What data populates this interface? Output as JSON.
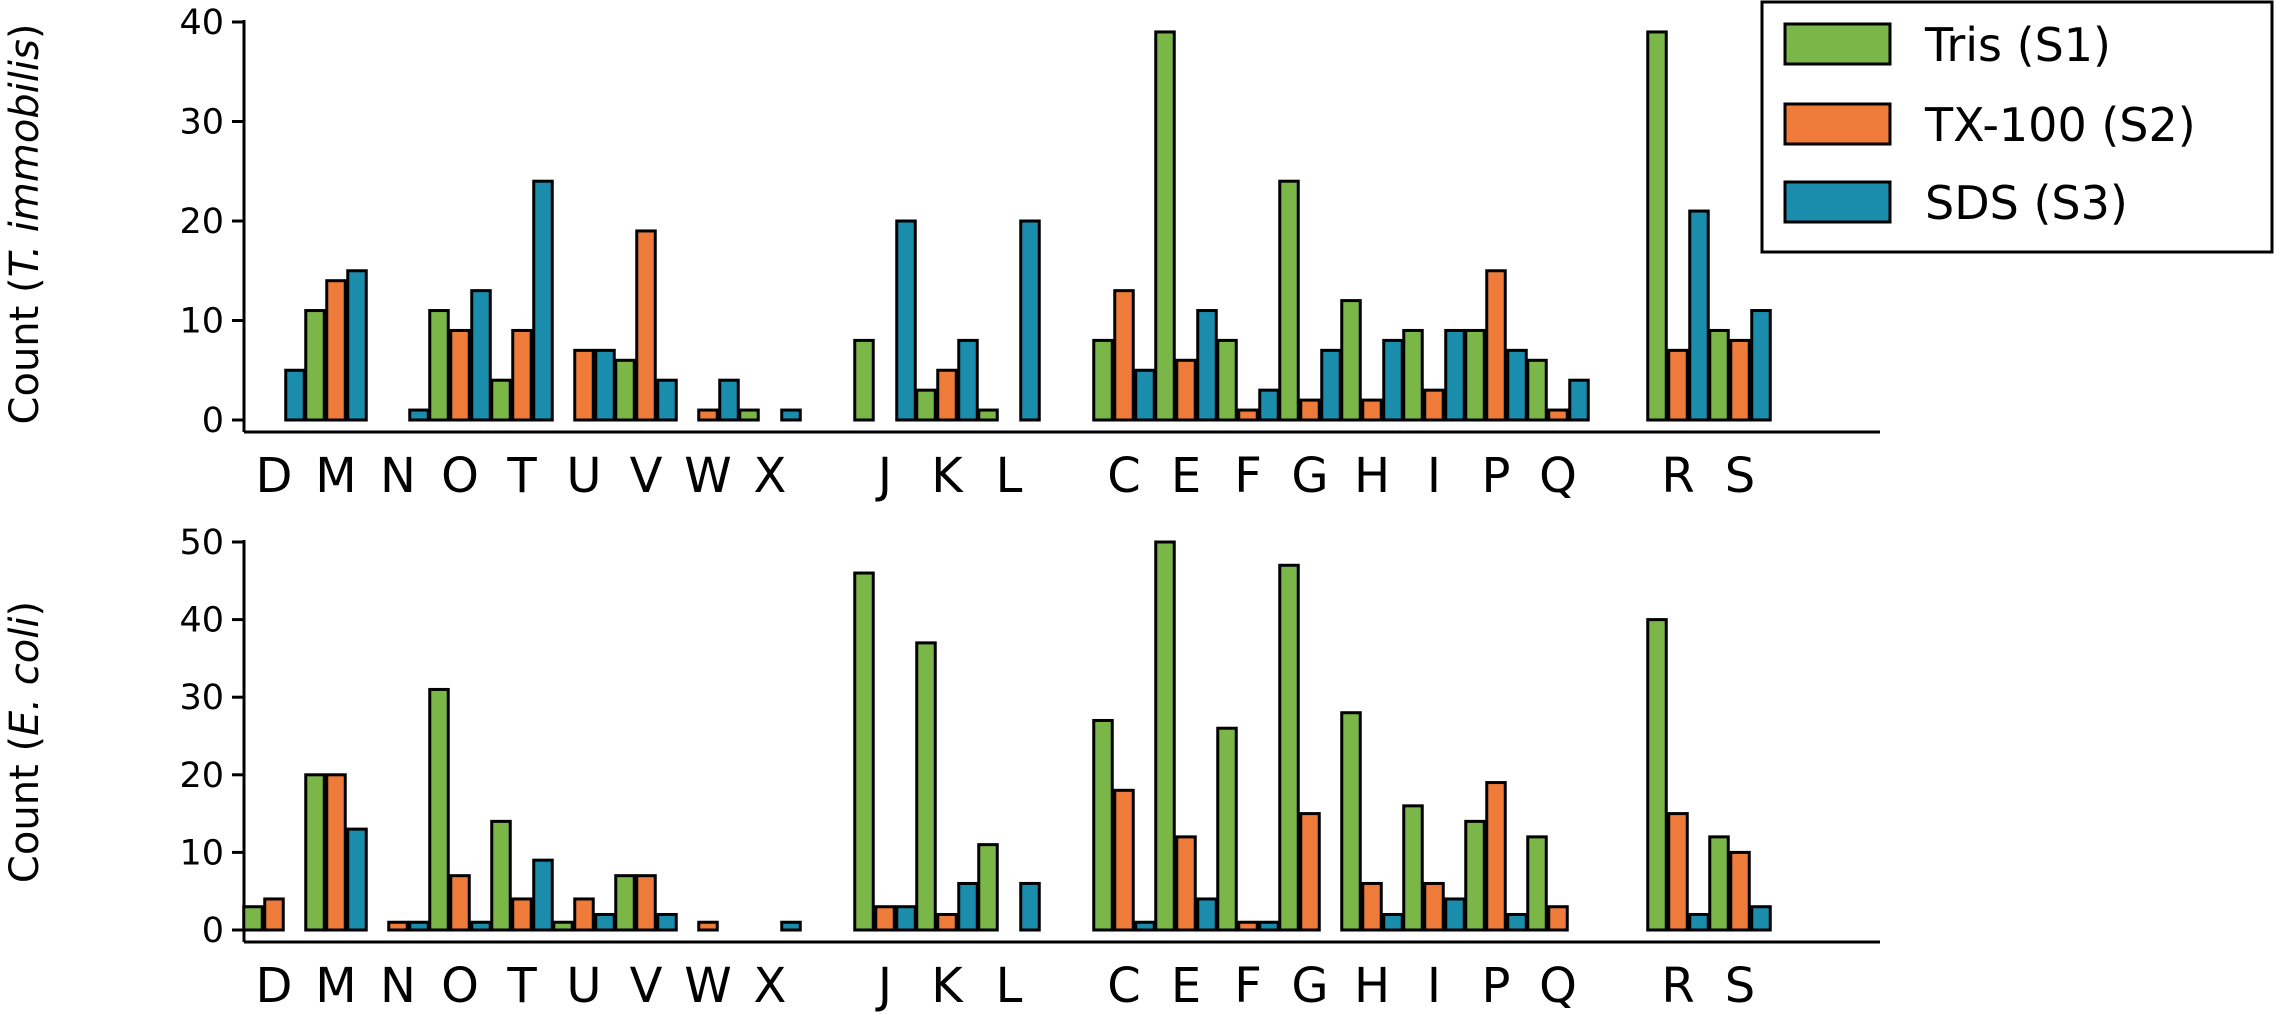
{
  "chart_data": [
    {
      "type": "bar",
      "ylabel_prefix": "Count (",
      "ylabel_italic": "T. immobilis",
      "ylabel_suffix": ")",
      "ylim": [
        0,
        40
      ],
      "yticks": [
        0,
        10,
        20,
        30,
        40
      ],
      "categories": [
        "D",
        "M",
        "N",
        "O",
        "T",
        "U",
        "V",
        "W",
        "X",
        "J",
        "K",
        "L",
        "C",
        "E",
        "F",
        "G",
        "H",
        "I",
        "P",
        "Q",
        "R",
        "S"
      ],
      "series": [
        {
          "name": "Tris (S1)",
          "values": [
            0,
            11,
            0,
            11,
            4,
            0,
            6,
            0,
            1,
            8,
            3,
            1,
            8,
            39,
            8,
            24,
            12,
            9,
            9,
            6,
            39,
            9
          ]
        },
        {
          "name": "TX-100 (S2)",
          "values": [
            0,
            14,
            0,
            9,
            9,
            7,
            19,
            1,
            0,
            0,
            5,
            0,
            13,
            6,
            1,
            2,
            2,
            3,
            15,
            1,
            7,
            8
          ]
        },
        {
          "name": "SDS (S3)",
          "values": [
            5,
            15,
            1,
            13,
            24,
            7,
            4,
            4,
            1,
            20,
            8,
            20,
            5,
            11,
            3,
            7,
            8,
            9,
            7,
            4,
            21,
            11
          ]
        }
      ],
      "grid": false
    },
    {
      "type": "bar",
      "ylabel_prefix": "Count (",
      "ylabel_italic": "E. coli",
      "ylabel_suffix": ")",
      "ylim": [
        0,
        50
      ],
      "yticks": [
        0,
        10,
        20,
        30,
        40,
        50
      ],
      "categories": [
        "D",
        "M",
        "N",
        "O",
        "T",
        "U",
        "V",
        "W",
        "X",
        "J",
        "K",
        "L",
        "C",
        "E",
        "F",
        "G",
        "H",
        "I",
        "P",
        "Q",
        "R",
        "S"
      ],
      "series": [
        {
          "name": "Tris (S1)",
          "values": [
            3,
            20,
            0,
            31,
            14,
            1,
            7,
            0,
            0,
            46,
            37,
            11,
            27,
            50,
            26,
            47,
            28,
            16,
            14,
            12,
            40,
            12
          ]
        },
        {
          "name": "TX-100 (S2)",
          "values": [
            4,
            20,
            1,
            7,
            4,
            4,
            7,
            1,
            0,
            3,
            2,
            0,
            18,
            12,
            1,
            15,
            6,
            6,
            19,
            3,
            15,
            10
          ]
        },
        {
          "name": "SDS (S3)",
          "values": [
            0,
            13,
            1,
            1,
            9,
            2,
            2,
            0,
            1,
            3,
            6,
            6,
            1,
            4,
            1,
            0,
            2,
            4,
            2,
            0,
            2,
            3
          ]
        }
      ],
      "grid": false
    }
  ],
  "legend": {
    "placement": "top-right",
    "items": [
      {
        "label": "Tris (S1)",
        "color": "#7ab648"
      },
      {
        "label": "TX-100 (S2)",
        "color": "#ef7b3a"
      },
      {
        "label": "SDS (S3)",
        "color": "#1a8dad"
      }
    ]
  }
}
